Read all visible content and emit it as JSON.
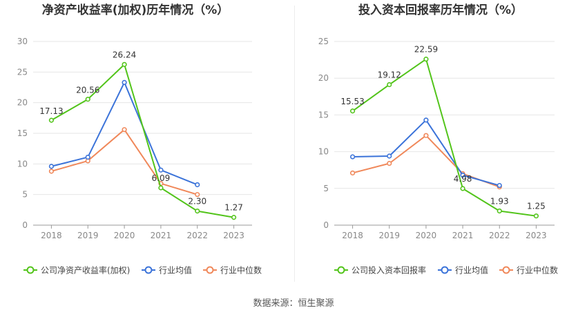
{
  "footer": {
    "source_label": "数据来源：",
    "source_name": "恒生聚源"
  },
  "colors": {
    "company": "#52c41a",
    "industry_avg": "#3b73d9",
    "industry_median": "#f0885a"
  },
  "chart_data": [
    {
      "type": "line",
      "title": "净资产收益率(加权)历年情况（%）",
      "categories": [
        "2018",
        "2019",
        "2020",
        "2021",
        "2022",
        "2023"
      ],
      "ylim": [
        0,
        30
      ],
      "yticks": [
        0,
        5,
        10,
        15,
        20,
        25,
        30
      ],
      "grid": true,
      "legend_position": "bottom",
      "series": [
        {
          "name": "公司净资产收益率(加权)",
          "color": "#52c41a",
          "values": [
            17.13,
            20.56,
            26.24,
            6.09,
            2.3,
            1.27
          ],
          "labels": [
            "17.13",
            "20.56",
            "26.24",
            "6.09",
            "2.30",
            "1.27"
          ]
        },
        {
          "name": "行业均值",
          "color": "#3b73d9",
          "values": [
            9.6,
            11.1,
            23.3,
            9.0,
            6.6,
            null
          ]
        },
        {
          "name": "行业中位数",
          "color": "#f0885a",
          "values": [
            8.8,
            10.5,
            15.6,
            6.8,
            5.0,
            null
          ]
        }
      ]
    },
    {
      "type": "line",
      "title": "投入资本回报率历年情况（%）",
      "categories": [
        "2018",
        "2019",
        "2020",
        "2021",
        "2022",
        "2023"
      ],
      "ylim": [
        0,
        25
      ],
      "yticks": [
        0,
        5,
        10,
        15,
        20,
        25
      ],
      "grid": true,
      "legend_position": "bottom",
      "series": [
        {
          "name": "公司投入资本回报率",
          "color": "#52c41a",
          "values": [
            15.53,
            19.12,
            22.59,
            4.98,
            1.93,
            1.25
          ],
          "labels": [
            "15.53",
            "19.12",
            "22.59",
            "4.98",
            "1.93",
            "1.25"
          ]
        },
        {
          "name": "行业均值",
          "color": "#3b73d9",
          "values": [
            9.3,
            9.4,
            14.3,
            6.8,
            5.4,
            null
          ]
        },
        {
          "name": "行业中位数",
          "color": "#f0885a",
          "values": [
            7.1,
            8.4,
            12.2,
            7.0,
            5.2,
            null
          ]
        }
      ]
    }
  ]
}
